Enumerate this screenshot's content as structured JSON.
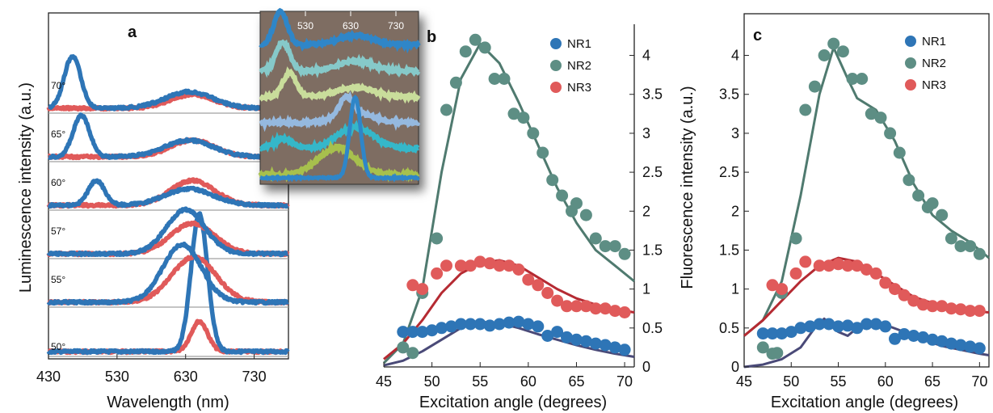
{
  "colors": {
    "NR1": "#2e75b6",
    "NR2": "#5d8e84",
    "NR3": "#e05a5a",
    "NR1_fit": "#4a4a78",
    "NR2_fit": "#4f7a6f",
    "NR3_fit": "#b52a32",
    "inset_bg": "#7e6d62",
    "baseline": "#a0a0a0"
  },
  "chart_data": [
    {
      "panel": "a",
      "type": "line",
      "xlabel": "Wavelength (nm)",
      "ylabel": "Luminescence intensity (a.u.)",
      "x_ticks": [
        430,
        530,
        630,
        730
      ],
      "xlim": [
        430,
        780
      ],
      "traces": [
        {
          "angle": "50°",
          "blue_peak_nm": 650,
          "blue_peak_height": 1.0,
          "red_peak_nm": 650,
          "red_peak_height": 0.22
        },
        {
          "angle": "55°",
          "blue_peak_nm": 625,
          "blue_peak_height": 0.42,
          "red_peak_nm": 642,
          "red_peak_height": 0.33
        },
        {
          "angle": "57°",
          "blue_peak_nm": 630,
          "blue_peak_height": 0.32,
          "red_peak_nm": 640,
          "red_peak_height": 0.22
        },
        {
          "angle": "60°",
          "blue_peak_nm": 500,
          "blue_peak_height": 0.18,
          "red_peak_nm": 640,
          "red_peak_height": 0.18
        },
        {
          "angle": "65°",
          "blue_peak_nm": 478,
          "blue_peak_height": 0.3,
          "red_peak_nm": 640,
          "red_peak_height": 0.12
        },
        {
          "angle": "70°",
          "blue_peak_nm": 465,
          "blue_peak_height": 0.38,
          "red_peak_nm": 640,
          "red_peak_height": 0.1
        }
      ],
      "inset": {
        "x_ticks": [
          530,
          630,
          730
        ],
        "trace_colors": [
          "#2f86c8",
          "#86c9c9",
          "#c9dd9b",
          "#95b9df",
          "#35b7c9",
          "#a7c04d"
        ]
      }
    },
    {
      "panel": "b",
      "type": "scatter",
      "xlabel": "Excitation angle (degrees)",
      "ylabel": "",
      "xlim": [
        45,
        71
      ],
      "ylim": [
        0,
        4.4
      ],
      "x_ticks": [
        45,
        50,
        55,
        60,
        65,
        70
      ],
      "y_ticks": [
        0,
        0.5,
        1,
        1.5,
        2,
        2.5,
        3,
        3.5,
        4
      ],
      "legend": [
        "NR1",
        "NR2",
        "NR3"
      ],
      "legend_position": "top-right",
      "series": [
        {
          "name": "NR1",
          "points": [
            [
              47,
              0.45
            ],
            [
              48,
              0.45
            ],
            [
              49,
              0.45
            ],
            [
              50,
              0.47
            ],
            [
              51,
              0.5
            ],
            [
              52,
              0.52
            ],
            [
              53,
              0.55
            ],
            [
              54,
              0.55
            ],
            [
              55,
              0.55
            ],
            [
              56,
              0.53
            ],
            [
              57,
              0.55
            ],
            [
              58,
              0.57
            ],
            [
              59,
              0.58
            ],
            [
              60,
              0.55
            ],
            [
              61,
              0.52
            ],
            [
              62,
              0.4
            ],
            [
              63,
              0.45
            ],
            [
              64,
              0.38
            ],
            [
              65,
              0.35
            ],
            [
              66,
              0.33
            ],
            [
              67,
              0.3
            ],
            [
              68,
              0.28
            ],
            [
              69,
              0.25
            ],
            [
              70,
              0.22
            ]
          ],
          "fit": [
            [
              45,
              0.02
            ],
            [
              47,
              0.08
            ],
            [
              49,
              0.2
            ],
            [
              51,
              0.35
            ],
            [
              53,
              0.5
            ],
            [
              55,
              0.58
            ],
            [
              57,
              0.56
            ],
            [
              59,
              0.5
            ],
            [
              61,
              0.42
            ],
            [
              63,
              0.35
            ],
            [
              65,
              0.28
            ],
            [
              67,
              0.22
            ],
            [
              69,
              0.17
            ],
            [
              71,
              0.13
            ]
          ]
        },
        {
          "name": "NR2",
          "points": [
            [
              47,
              0.25
            ],
            [
              48,
              0.18
            ],
            [
              49,
              0.95
            ],
            [
              50.5,
              1.65
            ],
            [
              51.5,
              3.3
            ],
            [
              52.5,
              3.65
            ],
            [
              53.5,
              4.05
            ],
            [
              54.5,
              4.2
            ],
            [
              55.5,
              4.1
            ],
            [
              56.5,
              3.7
            ],
            [
              57.5,
              3.7
            ],
            [
              58.5,
              3.25
            ],
            [
              59.5,
              3.2
            ],
            [
              60.5,
              3.0
            ],
            [
              61.5,
              2.75
            ],
            [
              62.5,
              2.4
            ],
            [
              63.5,
              2.2
            ],
            [
              64.5,
              2.0
            ],
            [
              65,
              2.1
            ],
            [
              66,
              1.95
            ],
            [
              67,
              1.65
            ],
            [
              68,
              1.55
            ],
            [
              69,
              1.55
            ],
            [
              70,
              1.45
            ]
          ],
          "fit": [
            [
              45,
              0.05
            ],
            [
              47,
              0.3
            ],
            [
              49,
              1.0
            ],
            [
              51,
              2.5
            ],
            [
              53,
              3.7
            ],
            [
              55,
              4.15
            ],
            [
              57,
              3.9
            ],
            [
              59,
              3.4
            ],
            [
              61,
              2.85
            ],
            [
              63,
              2.3
            ],
            [
              65,
              1.85
            ],
            [
              67,
              1.5
            ],
            [
              69,
              1.3
            ],
            [
              71,
              1.1
            ]
          ]
        },
        {
          "name": "NR3",
          "points": [
            [
              48,
              1.05
            ],
            [
              49,
              1.0
            ],
            [
              50.5,
              1.2
            ],
            [
              51.5,
              1.3
            ],
            [
              53,
              1.3
            ],
            [
              54,
              1.3
            ],
            [
              55,
              1.35
            ],
            [
              56,
              1.33
            ],
            [
              57,
              1.3
            ],
            [
              58,
              1.3
            ],
            [
              59,
              1.25
            ],
            [
              60,
              1.12
            ],
            [
              61,
              1.05
            ],
            [
              62,
              0.95
            ],
            [
              63,
              0.85
            ],
            [
              64,
              0.78
            ],
            [
              65,
              0.78
            ],
            [
              66,
              0.78
            ],
            [
              67,
              0.75
            ],
            [
              68,
              0.75
            ],
            [
              69,
              0.72
            ],
            [
              70,
              0.7
            ]
          ],
          "fit": [
            [
              45,
              0.1
            ],
            [
              47,
              0.3
            ],
            [
              49,
              0.6
            ],
            [
              51,
              0.95
            ],
            [
              53,
              1.2
            ],
            [
              55,
              1.33
            ],
            [
              57,
              1.37
            ],
            [
              59,
              1.3
            ],
            [
              61,
              1.15
            ],
            [
              63,
              1.0
            ],
            [
              65,
              0.88
            ],
            [
              67,
              0.8
            ],
            [
              69,
              0.74
            ],
            [
              71,
              0.7
            ]
          ]
        }
      ]
    },
    {
      "panel": "c",
      "type": "scatter",
      "xlabel": "Excitation angle (degrees)",
      "ylabel": "Fluorescence intensity (a.u.)",
      "xlim": [
        45,
        71
      ],
      "ylim": [
        0,
        4.4
      ],
      "x_ticks": [
        45,
        50,
        55,
        60,
        65,
        70
      ],
      "y_ticks": [
        0,
        0.5,
        1,
        1.5,
        2,
        2.5,
        3,
        3.5,
        4
      ],
      "legend": [
        "NR1",
        "NR2",
        "NR3"
      ],
      "legend_position": "top-right",
      "series": [
        {
          "name": "NR1",
          "points": [
            [
              47,
              0.43
            ],
            [
              48,
              0.43
            ],
            [
              49,
              0.43
            ],
            [
              50,
              0.45
            ],
            [
              51,
              0.5
            ],
            [
              52,
              0.52
            ],
            [
              53,
              0.55
            ],
            [
              54,
              0.55
            ],
            [
              55,
              0.52
            ],
            [
              56,
              0.53
            ],
            [
              57,
              0.5
            ],
            [
              58,
              0.55
            ],
            [
              59,
              0.55
            ],
            [
              60,
              0.52
            ],
            [
              61,
              0.36
            ],
            [
              62,
              0.42
            ],
            [
              63,
              0.4
            ],
            [
              64,
              0.38
            ],
            [
              65,
              0.35
            ],
            [
              66,
              0.33
            ],
            [
              67,
              0.3
            ],
            [
              68,
              0.28
            ],
            [
              69,
              0.26
            ],
            [
              70,
              0.24
            ]
          ],
          "fit": [
            [
              45,
              0.0
            ],
            [
              47,
              0.03
            ],
            [
              49,
              0.1
            ],
            [
              51,
              0.25
            ],
            [
              52.5,
              0.5
            ],
            [
              53.5,
              0.62
            ],
            [
              55,
              0.45
            ],
            [
              56,
              0.4
            ],
            [
              57,
              0.5
            ],
            [
              59,
              0.56
            ],
            [
              60,
              0.54
            ],
            [
              62,
              0.45
            ],
            [
              64,
              0.35
            ],
            [
              66,
              0.27
            ],
            [
              68,
              0.22
            ],
            [
              70,
              0.17
            ],
            [
              71,
              0.15
            ]
          ]
        },
        {
          "name": "NR2",
          "points": [
            [
              47,
              0.25
            ],
            [
              48,
              0.17
            ],
            [
              48.5,
              0.18
            ],
            [
              49,
              0.95
            ],
            [
              50.5,
              1.65
            ],
            [
              51.5,
              3.3
            ],
            [
              52.5,
              3.6
            ],
            [
              53.5,
              4.0
            ],
            [
              54.5,
              4.15
            ],
            [
              55.5,
              4.05
            ],
            [
              56.5,
              3.7
            ],
            [
              57.5,
              3.7
            ],
            [
              58.5,
              3.25
            ],
            [
              59.5,
              3.2
            ],
            [
              60.5,
              3.0
            ],
            [
              61.5,
              2.75
            ],
            [
              62.5,
              2.4
            ],
            [
              63.5,
              2.2
            ],
            [
              64.5,
              2.05
            ],
            [
              65,
              2.1
            ],
            [
              66,
              1.95
            ],
            [
              67,
              1.65
            ],
            [
              68,
              1.55
            ],
            [
              69,
              1.55
            ],
            [
              70,
              1.45
            ]
          ],
          "fit": [
            [
              45,
              0.4
            ],
            [
              47,
              0.6
            ],
            [
              49,
              1.1
            ],
            [
              51,
              2.2
            ],
            [
              53,
              3.5
            ],
            [
              54.5,
              4.1
            ],
            [
              56,
              3.7
            ],
            [
              57,
              3.45
            ],
            [
              59,
              3.3
            ],
            [
              61,
              2.9
            ],
            [
              63,
              2.35
            ],
            [
              65,
              1.95
            ],
            [
              67,
              1.75
            ],
            [
              69,
              1.6
            ],
            [
              71,
              1.4
            ]
          ]
        },
        {
          "name": "NR3",
          "points": [
            [
              48,
              1.05
            ],
            [
              49,
              1.0
            ],
            [
              50.5,
              1.2
            ],
            [
              51.5,
              1.35
            ],
            [
              53,
              1.3
            ],
            [
              54,
              1.3
            ],
            [
              55,
              1.32
            ],
            [
              56,
              1.3
            ],
            [
              57,
              1.3
            ],
            [
              58,
              1.25
            ],
            [
              59,
              1.2
            ],
            [
              60,
              1.08
            ],
            [
              61,
              1.0
            ],
            [
              62,
              0.92
            ],
            [
              63,
              0.85
            ],
            [
              64,
              0.8
            ],
            [
              65,
              0.78
            ],
            [
              66,
              0.78
            ],
            [
              67,
              0.75
            ],
            [
              68,
              0.74
            ],
            [
              69,
              0.72
            ],
            [
              70,
              0.72
            ]
          ],
          "fit": [
            [
              45,
              0.4
            ],
            [
              47,
              0.6
            ],
            [
              49,
              0.85
            ],
            [
              51,
              1.1
            ],
            [
              53,
              1.3
            ],
            [
              55,
              1.4
            ],
            [
              57,
              1.35
            ],
            [
              59,
              1.2
            ],
            [
              61,
              1.05
            ],
            [
              63,
              0.9
            ],
            [
              65,
              0.82
            ],
            [
              67,
              0.76
            ],
            [
              69,
              0.72
            ],
            [
              71,
              0.7
            ]
          ]
        }
      ]
    }
  ]
}
